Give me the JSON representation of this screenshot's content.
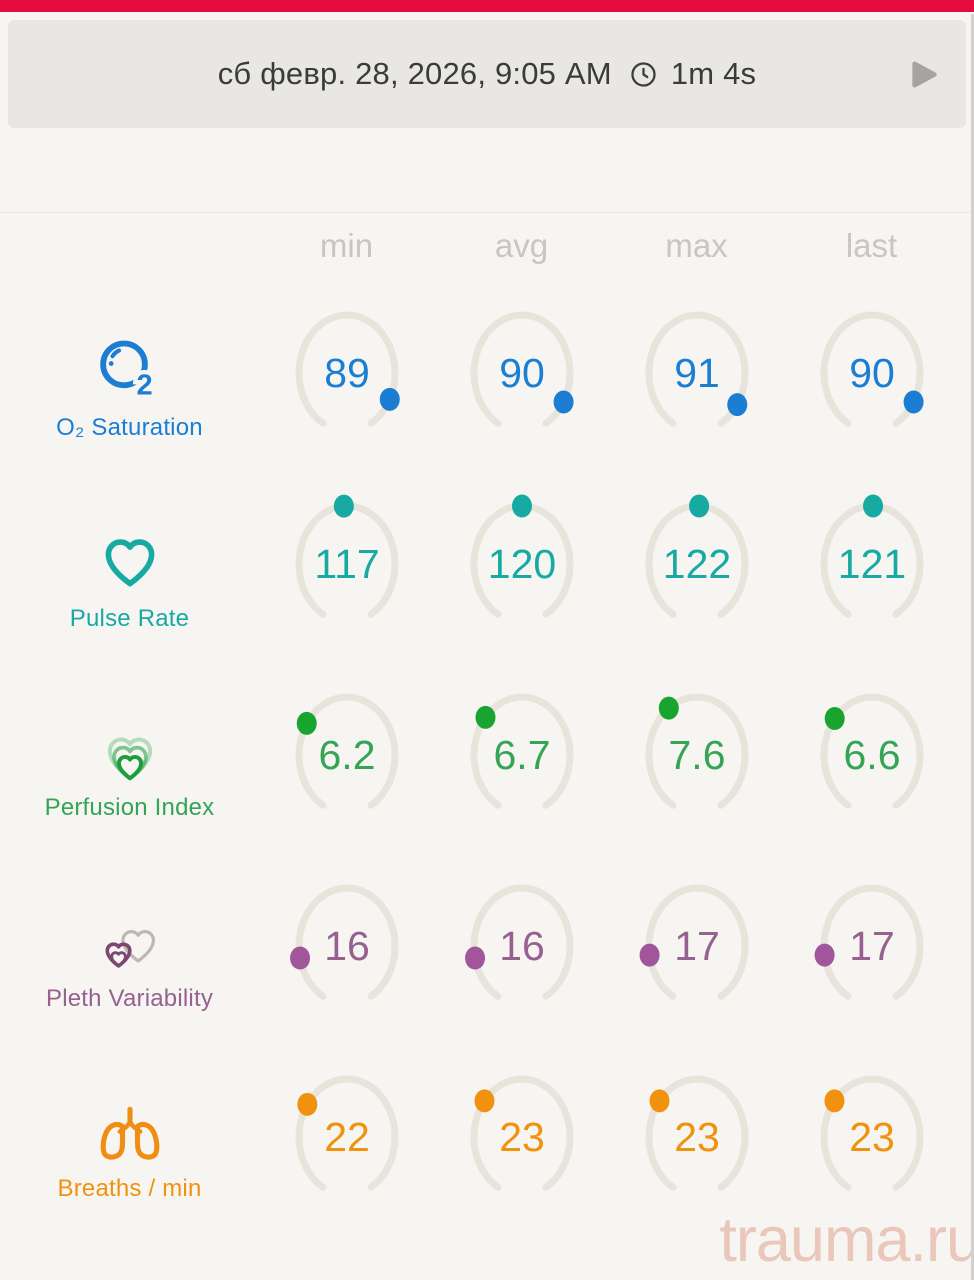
{
  "theme": {
    "accent_red": "#e60b3f",
    "header_bg": "#e9e7e4",
    "page_bg": "#f6f5f2",
    "track_color": "#e8e4db",
    "muted_text": "#c8c6c2",
    "header_text": "#3b3b3b",
    "play_icon_color": "#a6a4a2",
    "watermark_color": "#eac7ba"
  },
  "header": {
    "date": "сб февр. 28, 2026, 9:05 AM",
    "duration": "1m 4s"
  },
  "columns": [
    "min",
    "avg",
    "max",
    "last"
  ],
  "rows": [
    {
      "id": "o2-saturation",
      "label": "O₂ Saturation",
      "icon": "o2-bubble-icon",
      "color": "#1b7ed3",
      "dot_color": "#1b7ed3",
      "icon_colors": [
        "#1b7ed3"
      ],
      "gauge_range": [
        0,
        100
      ],
      "values": [
        89,
        90,
        91,
        90
      ],
      "display": [
        "89",
        "90",
        "91",
        "90"
      ]
    },
    {
      "id": "pulse-rate",
      "label": "Pulse Rate",
      "icon": "heart-icon",
      "color": "#17aaa3",
      "dot_color": "#17aaa3",
      "icon_colors": [
        "#17aaa3"
      ],
      "gauge_range": [
        0,
        240
      ],
      "values": [
        117,
        120,
        122,
        121
      ],
      "display": [
        "117",
        "120",
        "122",
        "121"
      ]
    },
    {
      "id": "perfusion-index",
      "label": "Perfusion Index",
      "icon": "nested-hearts-icon",
      "color": "#35a455",
      "dot_color": "#18a42e",
      "icon_colors": [
        "#1c9e3a"
      ],
      "gauge_range": [
        0,
        20
      ],
      "values": [
        6.2,
        6.7,
        7.6,
        6.6
      ],
      "display": [
        "6.2",
        "6.7",
        "7.6",
        "6.6"
      ]
    },
    {
      "id": "pleth-variability",
      "label": "Pleth Variability",
      "icon": "overlapping-hearts-icon",
      "color": "#96618f",
      "dot_color": "#a1569b",
      "icon_colors": [
        "#bcb8b4",
        "#7c4873"
      ],
      "gauge_range": [
        0,
        100
      ],
      "values": [
        16,
        16,
        17,
        17
      ],
      "display": [
        "16",
        "16",
        "17",
        "17"
      ]
    },
    {
      "id": "breaths-per-min",
      "label": "Breaths / min",
      "icon": "lungs-icon",
      "color": "#f1920e",
      "dot_color": "#f1920e",
      "icon_colors": [
        "#ef8e12"
      ],
      "gauge_range": [
        0,
        70
      ],
      "values": [
        22,
        23,
        23,
        23
      ],
      "display": [
        "22",
        "23",
        "23",
        "23"
      ]
    }
  ],
  "watermark": "trauma.ru"
}
